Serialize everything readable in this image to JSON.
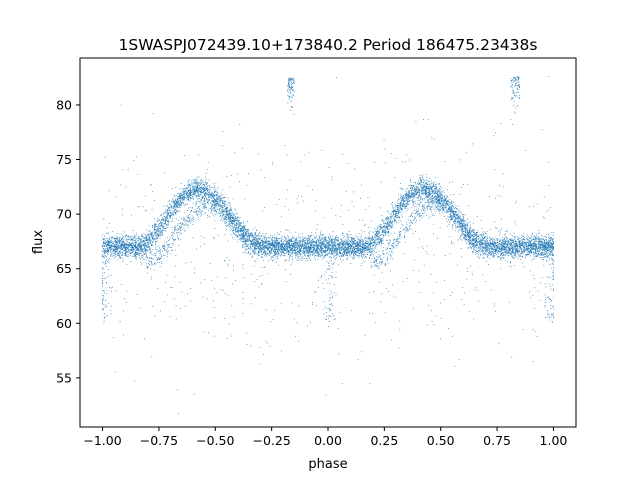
{
  "chart_data": {
    "type": "scatter",
    "title": "1SWASPJ072439.10+173840.2 Period 186475.23438s",
    "xlabel": "phase",
    "ylabel": "flux",
    "xlim": [
      -1.1,
      1.1
    ],
    "ylim": [
      50.5,
      84.3
    ],
    "xticks": [
      -1.0,
      -0.75,
      -0.5,
      -0.25,
      0.0,
      0.25,
      0.5,
      0.75,
      1.0
    ],
    "xtick_labels": [
      "−1.00",
      "−0.75",
      "−0.50",
      "−0.25",
      "0.00",
      "0.25",
      "0.50",
      "0.75",
      "1.00"
    ],
    "yticks": [
      55,
      60,
      65,
      70,
      75,
      80
    ],
    "ytick_labels": [
      "55",
      "60",
      "65",
      "70",
      "75",
      "80"
    ],
    "grid": false,
    "marker_color": "#1f77b4",
    "light_curve": {
      "phase_period": 1.0,
      "baseline_flux": 67.0,
      "peak_flux": 72.3,
      "peak_phase": 0.42,
      "rise_start_phase": 0.15,
      "decay_end_phase": 0.72,
      "scatter_flux": 0.5,
      "secondary_track_offset": -1.5,
      "secondary_track_lag_phase": 0.04
    },
    "outlier_clusters": [
      {
        "phase_min": -0.18,
        "phase_max": -0.15,
        "flux_min": 80.0,
        "flux_max": 82.6
      },
      {
        "phase_min": 0.81,
        "phase_max": 0.85,
        "flux_min": 80.0,
        "flux_max": 82.6
      }
    ],
    "sample_points": [
      [
        -1.0,
        67.0
      ],
      [
        -0.95,
        66.9
      ],
      [
        -0.9,
        67.2
      ],
      [
        -0.85,
        67.0
      ],
      [
        -0.8,
        67.4
      ],
      [
        -0.75,
        68.3
      ],
      [
        -0.7,
        70.1
      ],
      [
        -0.65,
        71.7
      ],
      [
        -0.6,
        72.4
      ],
      [
        -0.55,
        72.1
      ],
      [
        -0.5,
        71.0
      ],
      [
        -0.45,
        69.5
      ],
      [
        -0.4,
        68.4
      ],
      [
        -0.35,
        67.6
      ],
      [
        -0.3,
        67.1
      ],
      [
        -0.25,
        66.8
      ],
      [
        -0.2,
        66.9
      ],
      [
        -0.15,
        67.0
      ],
      [
        -0.1,
        67.1
      ],
      [
        -0.05,
        66.9
      ],
      [
        0.0,
        67.0
      ],
      [
        0.05,
        66.9
      ],
      [
        0.1,
        67.2
      ],
      [
        0.15,
        67.0
      ],
      [
        0.2,
        67.4
      ],
      [
        0.25,
        68.3
      ],
      [
        0.3,
        70.1
      ],
      [
        0.35,
        71.7
      ],
      [
        0.4,
        72.4
      ],
      [
        0.45,
        72.1
      ],
      [
        0.5,
        71.0
      ],
      [
        0.55,
        69.5
      ],
      [
        0.6,
        68.4
      ],
      [
        0.65,
        67.6
      ],
      [
        0.7,
        67.1
      ],
      [
        0.75,
        66.8
      ],
      [
        0.8,
        66.9
      ],
      [
        0.85,
        67.0
      ],
      [
        0.9,
        67.1
      ],
      [
        0.95,
        66.9
      ],
      [
        1.0,
        67.0
      ]
    ]
  }
}
